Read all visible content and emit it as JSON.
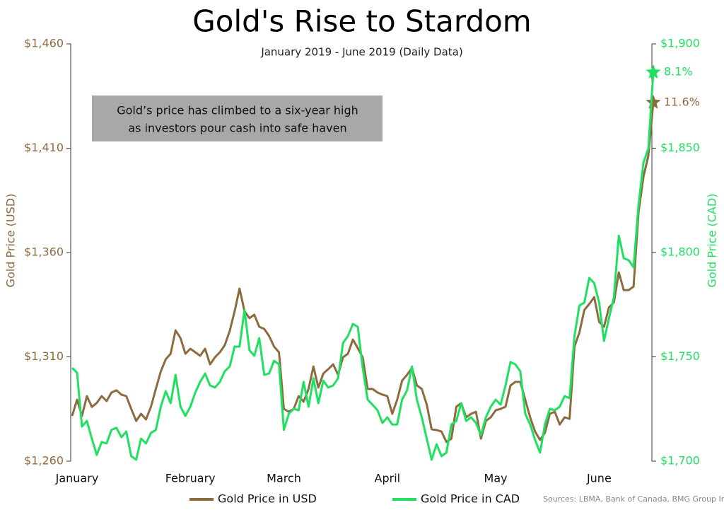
{
  "chart_data": {
    "type": "line",
    "title": "Gold's Rise to Stardom",
    "subtitle": "January 2019 - June 2019 (Daily Data)",
    "annotation": [
      "Gold’s price has climbed to a six-year high",
      "as investors pour cash into safe haven"
    ],
    "source": "Sources: LBMA, Bank of Canada, BMG Group Inc.",
    "ylabel": "Gold Price (USD)",
    "y2label": "Gold Price (CAD)",
    "categories": [
      null,
      "January",
      null,
      null,
      null,
      null,
      null,
      null,
      null,
      null,
      null,
      null,
      null,
      null,
      null,
      null,
      null,
      null,
      null,
      null,
      null,
      null,
      null,
      null,
      "February",
      null,
      null,
      null,
      null,
      null,
      null,
      null,
      null,
      null,
      null,
      null,
      null,
      null,
      null,
      null,
      null,
      null,
      null,
      "March",
      null,
      null,
      null,
      null,
      null,
      null,
      null,
      null,
      null,
      null,
      null,
      null,
      null,
      null,
      null,
      null,
      null,
      null,
      null,
      null,
      "April",
      null,
      null,
      null,
      null,
      null,
      null,
      null,
      null,
      null,
      null,
      null,
      null,
      null,
      null,
      null,
      null,
      null,
      null,
      null,
      null,
      null,
      "May",
      null,
      null,
      null,
      null,
      null,
      null,
      null,
      null,
      null,
      null,
      null,
      null,
      null,
      null,
      null,
      null,
      null,
      null,
      null,
      null,
      "June",
      null,
      null,
      null,
      null,
      null,
      null,
      null,
      null,
      null,
      null,
      null
    ],
    "ylim": [
      1260,
      1460
    ],
    "yticks": [
      {
        "value": 1260,
        "label": "$1,260"
      },
      {
        "value": 1310,
        "label": "$1,310"
      },
      {
        "value": 1360,
        "label": "$1,360"
      },
      {
        "value": 1410,
        "label": "$1,410"
      },
      {
        "value": 1460,
        "label": "$1,460"
      }
    ],
    "y2lim": [
      1700,
      1900
    ],
    "y2ticks": [
      {
        "value": 1700,
        "label": "$1,700"
      },
      {
        "value": 1750,
        "label": "$1,750"
      },
      {
        "value": 1800,
        "label": "$1,800"
      },
      {
        "value": 1850,
        "label": "$1,850"
      },
      {
        "value": 1900,
        "label": "$1,900"
      }
    ],
    "series": [
      {
        "name": "Gold Price in USD",
        "color": "#8c6b3f",
        "end_label": "11.6%",
        "values": [
          1281.7,
          1289.5,
          1281.7,
          1291.2,
          1286,
          1287.9,
          1291.2,
          1288.8,
          1292.9,
          1294,
          1291.9,
          1291.2,
          1285.1,
          1279.3,
          1282.7,
          1280,
          1286.1,
          1294.6,
          1303,
          1308.8,
          1311.5,
          1322.7,
          1319,
          1311.5,
          1313.9,
          1312.2,
          1310.5,
          1313.9,
          1306.4,
          1309.8,
          1312.2,
          1315.6,
          1322.4,
          1331.9,
          1342.7,
          1331.9,
          1328.5,
          1330.2,
          1324.4,
          1323.4,
          1320,
          1314.9,
          1312.2,
          1285.1,
          1283.7,
          1285.1,
          1291.2,
          1288.5,
          1294.6,
          1305.4,
          1295.3,
          1302,
          1304.1,
          1306.4,
          1301.4,
          1309.8,
          1311.5,
          1318.3,
          1314.2,
          1309.8,
          1294.6,
          1294.6,
          1292.9,
          1291.9,
          1291.2,
          1282.7,
          1289.5,
          1298.6,
          1301.4,
          1304.7,
          1296.3,
          1294.6,
          1287.1,
          1275.3,
          1274.9,
          1274.2,
          1269.2,
          1270.8,
          1286.1,
          1287.8,
          1281,
          1282.7,
          1283.7,
          1270.8,
          1279.3,
          1281,
          1284.4,
          1285.1,
          1286.1,
          1296.3,
          1298,
          1298,
          1289.5,
          1281,
          1274.2,
          1270.2,
          1273.6,
          1282.7,
          1283.7,
          1277.6,
          1281,
          1280.3,
          1314.9,
          1321.7,
          1332.5,
          1335.3,
          1338.6,
          1326.8,
          1324.4,
          1333.7,
          1336.1,
          1350.5,
          1342,
          1342,
          1343.7,
          1379.3,
          1396.3,
          1406.4,
          1431.9
        ]
      },
      {
        "name": "Gold Price in CAD",
        "color": "#1fe060",
        "axis": "y2",
        "end_label": "8.1%",
        "values": [
          1744.7,
          1742.4,
          1716.6,
          1719.3,
          1710.8,
          1703,
          1709.2,
          1708.5,
          1715,
          1716,
          1711.5,
          1714.2,
          1702.4,
          1700.7,
          1710.8,
          1708.5,
          1713.6,
          1715,
          1726.1,
          1733.6,
          1727.8,
          1741.4,
          1726.1,
          1721.7,
          1726.1,
          1732.9,
          1738,
          1742,
          1736.3,
          1735.3,
          1738,
          1743.1,
          1745.4,
          1754.9,
          1754.9,
          1772.5,
          1753.2,
          1750.5,
          1759,
          1741.4,
          1742,
          1748.1,
          1746.4,
          1715,
          1722.7,
          1725.1,
          1724.4,
          1738,
          1726.1,
          1739.7,
          1727.8,
          1738.6,
          1735.3,
          1736.3,
          1739.7,
          1756.6,
          1760,
          1765.8,
          1764.4,
          1744.7,
          1729.5,
          1727.1,
          1724.4,
          1718.3,
          1721,
          1717.6,
          1717.6,
          1729.5,
          1733.9,
          1745.4,
          1729.5,
          1721,
          1710.8,
          1700.7,
          1708.1,
          1702.4,
          1704.1,
          1717.6,
          1719.3,
          1727.8,
          1719.3,
          1721,
          1718.3,
          1712.5,
          1721,
          1726.1,
          1729.5,
          1727.1,
          1736.3,
          1747.5,
          1746.4,
          1743.1,
          1722.7,
          1717.6,
          1710.2,
          1704.1,
          1717.6,
          1725.1,
          1724.4,
          1726.1,
          1731.2,
          1730.2,
          1760,
          1774.6,
          1776,
          1787.8,
          1785.4,
          1776,
          1757.6,
          1768.5,
          1778.6,
          1808.1,
          1797.3,
          1796.3,
          1792.9,
          1822.7,
          1843.1,
          1849.8,
          1886.4
        ]
      }
    ]
  }
}
